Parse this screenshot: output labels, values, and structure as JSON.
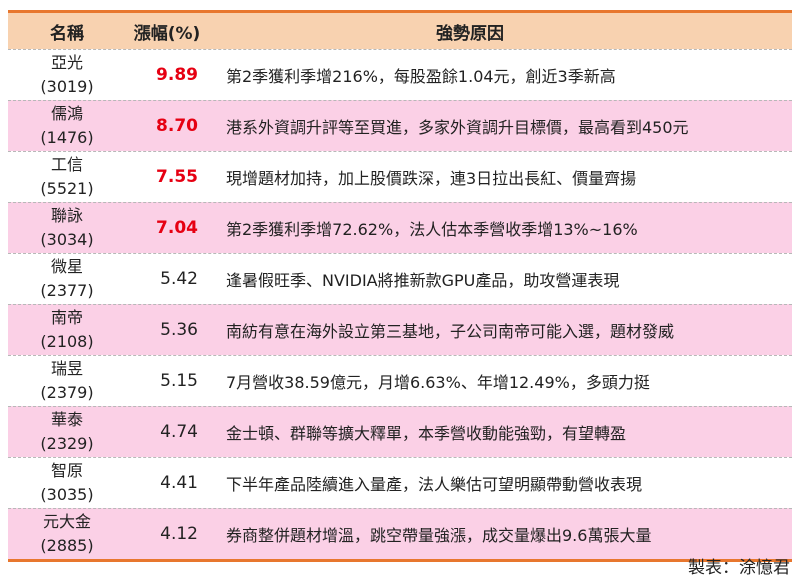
{
  "headers": {
    "name": "名稱",
    "change": "漲幅(%)",
    "reason": "強勢原因"
  },
  "highlight_color": "#e60012",
  "rows": [
    {
      "name": "亞光",
      "code": "(3019)",
      "change": "9.89",
      "highlight": true,
      "reason": "第2季獲利季增216%，每股盈餘1.04元，創近3季新高"
    },
    {
      "name": "儒鴻",
      "code": "(1476)",
      "change": "8.70",
      "highlight": true,
      "reason": "港系外資調升評等至買進，多家外資調升目標價，最高看到450元"
    },
    {
      "name": "工信",
      "code": "(5521)",
      "change": "7.55",
      "highlight": true,
      "reason": "現增題材加持，加上股價跌深，連3日拉出長紅、價量齊揚"
    },
    {
      "name": "聯詠",
      "code": "(3034)",
      "change": "7.04",
      "highlight": true,
      "reason": "第2季獲利季增72.62%，法人估本季營收季增13%~16%"
    },
    {
      "name": "微星",
      "code": "(2377)",
      "change": "5.42",
      "highlight": false,
      "reason": "逢暑假旺季、NVIDIA將推新款GPU產品，助攻營運表現"
    },
    {
      "name": "南帝",
      "code": "(2108)",
      "change": "5.36",
      "highlight": false,
      "reason": "南紡有意在海外設立第三基地，子公司南帝可能入選，題材發威"
    },
    {
      "name": "瑞昱",
      "code": "(2379)",
      "change": "5.15",
      "highlight": false,
      "reason": "7月營收38.59億元，月增6.63%、年增12.49%，多頭力挺"
    },
    {
      "name": "華泰",
      "code": "(2329)",
      "change": "4.74",
      "highlight": false,
      "reason": "金士頓、群聯等擴大釋單，本季營收動能強勁，有望轉盈"
    },
    {
      "name": "智原",
      "code": "(3035)",
      "change": "4.41",
      "highlight": false,
      "reason": "下半年產品陸續進入量產，法人樂估可望明顯帶動營收表現"
    },
    {
      "name": "元大金",
      "code": "(2885)",
      "change": "4.12",
      "highlight": false,
      "reason": "券商整併題材增溫，跳空帶量強漲，成交量爆出9.6萬張大量"
    }
  ],
  "credit": "製表：涂憶君"
}
